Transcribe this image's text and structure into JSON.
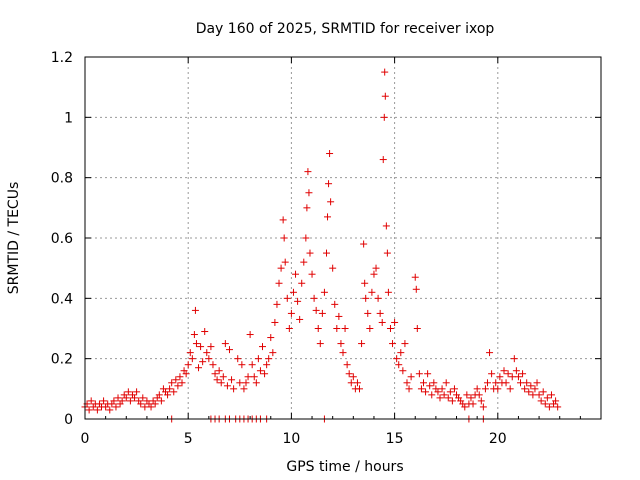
{
  "chart_data": {
    "type": "scatter",
    "title": "Day 160 of 2025, SRMTID for receiver ixop",
    "xlabel": "GPS time / hours",
    "ylabel": "SRMTID / TECUs",
    "xlim": [
      0,
      25
    ],
    "ylim": [
      0,
      1.2
    ],
    "x_ticks": [
      0,
      5,
      10,
      15,
      20
    ],
    "y_ticks": [
      0,
      0.2,
      0.4,
      0.6,
      0.8,
      1,
      1.2
    ],
    "x_tick_labels": [
      "0",
      "5",
      "10",
      "15",
      "20"
    ],
    "y_tick_labels": [
      "0",
      "0.2",
      "0.4",
      "0.6",
      "0.8",
      "1",
      "1.2"
    ],
    "grid": true,
    "marker": "+",
    "color": "#e00000",
    "series": [
      {
        "name": "SRMTID",
        "points": [
          [
            0.0,
            0.04
          ],
          [
            0.1,
            0.05
          ],
          [
            0.2,
            0.03
          ],
          [
            0.3,
            0.06
          ],
          [
            0.4,
            0.04
          ],
          [
            0.5,
            0.05
          ],
          [
            0.6,
            0.03
          ],
          [
            0.7,
            0.05
          ],
          [
            0.8,
            0.04
          ],
          [
            0.9,
            0.06
          ],
          [
            1.0,
            0.04
          ],
          [
            1.1,
            0.05
          ],
          [
            1.2,
            0.03
          ],
          [
            1.3,
            0.05
          ],
          [
            1.4,
            0.06
          ],
          [
            1.5,
            0.04
          ],
          [
            1.6,
            0.07
          ],
          [
            1.7,
            0.05
          ],
          [
            1.8,
            0.06
          ],
          [
            1.9,
            0.08
          ],
          [
            2.0,
            0.07
          ],
          [
            2.1,
            0.09
          ],
          [
            2.2,
            0.06
          ],
          [
            2.3,
            0.08
          ],
          [
            2.4,
            0.07
          ],
          [
            2.5,
            0.09
          ],
          [
            2.6,
            0.06
          ],
          [
            2.7,
            0.05
          ],
          [
            2.8,
            0.07
          ],
          [
            2.9,
            0.04
          ],
          [
            3.0,
            0.06
          ],
          [
            3.1,
            0.05
          ],
          [
            3.2,
            0.04
          ],
          [
            3.3,
            0.06
          ],
          [
            3.4,
            0.05
          ],
          [
            3.5,
            0.07
          ],
          [
            3.6,
            0.08
          ],
          [
            3.7,
            0.06
          ],
          [
            3.8,
            0.1
          ],
          [
            3.9,
            0.09
          ],
          [
            4.0,
            0.08
          ],
          [
            4.1,
            0.1
          ],
          [
            4.2,
            0.12
          ],
          [
            4.3,
            0.09
          ],
          [
            4.4,
            0.13
          ],
          [
            4.5,
            0.11
          ],
          [
            4.6,
            0.14
          ],
          [
            4.7,
            0.12
          ],
          [
            4.8,
            0.16
          ],
          [
            4.9,
            0.15
          ],
          [
            5.0,
            0.18
          ],
          [
            5.1,
            0.22
          ],
          [
            5.2,
            0.2
          ],
          [
            5.3,
            0.28
          ],
          [
            5.35,
            0.36
          ],
          [
            5.4,
            0.25
          ],
          [
            5.5,
            0.17
          ],
          [
            5.6,
            0.24
          ],
          [
            5.7,
            0.19
          ],
          [
            5.8,
            0.29
          ],
          [
            5.9,
            0.22
          ],
          [
            6.0,
            0.2
          ],
          [
            6.1,
            0.24
          ],
          [
            6.2,
            0.18
          ],
          [
            6.3,
            0.15
          ],
          [
            6.4,
            0.13
          ],
          [
            6.5,
            0.16
          ],
          [
            6.6,
            0.12
          ],
          [
            6.7,
            0.14
          ],
          [
            6.8,
            0.25
          ],
          [
            6.9,
            0.11
          ],
          [
            7.0,
            0.23
          ],
          [
            7.1,
            0.13
          ],
          [
            7.2,
            0.1
          ],
          [
            7.4,
            0.2
          ],
          [
            7.5,
            0.12
          ],
          [
            7.6,
            0.18
          ],
          [
            7.7,
            0.1
          ],
          [
            7.8,
            0.12
          ],
          [
            7.9,
            0.14
          ],
          [
            8.0,
            0.28
          ],
          [
            8.1,
            0.18
          ],
          [
            8.2,
            0.14
          ],
          [
            8.3,
            0.12
          ],
          [
            8.4,
            0.2
          ],
          [
            8.5,
            0.16
          ],
          [
            8.6,
            0.24
          ],
          [
            8.7,
            0.15
          ],
          [
            8.8,
            0.18
          ],
          [
            8.9,
            0.2
          ],
          [
            9.0,
            0.27
          ],
          [
            9.1,
            0.22
          ],
          [
            9.2,
            0.32
          ],
          [
            9.3,
            0.38
          ],
          [
            9.4,
            0.45
          ],
          [
            9.5,
            0.5
          ],
          [
            9.6,
            0.66
          ],
          [
            9.65,
            0.6
          ],
          [
            9.7,
            0.52
          ],
          [
            9.8,
            0.4
          ],
          [
            9.9,
            0.3
          ],
          [
            10.0,
            0.35
          ],
          [
            10.1,
            0.42
          ],
          [
            10.2,
            0.48
          ],
          [
            10.3,
            0.39
          ],
          [
            10.4,
            0.33
          ],
          [
            10.5,
            0.45
          ],
          [
            10.6,
            0.52
          ],
          [
            10.7,
            0.6
          ],
          [
            10.75,
            0.7
          ],
          [
            10.8,
            0.82
          ],
          [
            10.85,
            0.75
          ],
          [
            10.9,
            0.55
          ],
          [
            11.0,
            0.48
          ],
          [
            11.1,
            0.4
          ],
          [
            11.2,
            0.36
          ],
          [
            11.3,
            0.3
          ],
          [
            11.4,
            0.25
          ],
          [
            11.5,
            0.35
          ],
          [
            11.6,
            0.42
          ],
          [
            11.7,
            0.55
          ],
          [
            11.75,
            0.67
          ],
          [
            11.8,
            0.78
          ],
          [
            11.85,
            0.88
          ],
          [
            11.9,
            0.72
          ],
          [
            12.0,
            0.5
          ],
          [
            12.1,
            0.38
          ],
          [
            12.2,
            0.3
          ],
          [
            12.3,
            0.34
          ],
          [
            12.4,
            0.25
          ],
          [
            12.5,
            0.22
          ],
          [
            12.6,
            0.3
          ],
          [
            12.7,
            0.18
          ],
          [
            12.8,
            0.15
          ],
          [
            12.9,
            0.12
          ],
          [
            13.0,
            0.14
          ],
          [
            13.1,
            0.1
          ],
          [
            13.2,
            0.12
          ],
          [
            13.3,
            0.1
          ],
          [
            13.4,
            0.25
          ],
          [
            13.5,
            0.58
          ],
          [
            13.55,
            0.45
          ],
          [
            13.6,
            0.4
          ],
          [
            13.7,
            0.35
          ],
          [
            13.8,
            0.3
          ],
          [
            13.9,
            0.42
          ],
          [
            14.0,
            0.48
          ],
          [
            14.1,
            0.5
          ],
          [
            14.2,
            0.4
          ],
          [
            14.3,
            0.35
          ],
          [
            14.4,
            0.32
          ],
          [
            14.45,
            0.86
          ],
          [
            14.5,
            1.0
          ],
          [
            14.52,
            1.15
          ],
          [
            14.55,
            1.07
          ],
          [
            14.6,
            0.64
          ],
          [
            14.65,
            0.55
          ],
          [
            14.7,
            0.42
          ],
          [
            14.8,
            0.3
          ],
          [
            14.9,
            0.25
          ],
          [
            15.0,
            0.32
          ],
          [
            15.1,
            0.2
          ],
          [
            15.2,
            0.18
          ],
          [
            15.3,
            0.22
          ],
          [
            15.4,
            0.16
          ],
          [
            15.5,
            0.25
          ],
          [
            15.6,
            0.12
          ],
          [
            15.7,
            0.1
          ],
          [
            15.8,
            0.14
          ],
          [
            16.0,
            0.47
          ],
          [
            16.05,
            0.43
          ],
          [
            16.1,
            0.3
          ],
          [
            16.2,
            0.15
          ],
          [
            16.3,
            0.1
          ],
          [
            16.4,
            0.12
          ],
          [
            16.5,
            0.09
          ],
          [
            16.6,
            0.15
          ],
          [
            16.7,
            0.11
          ],
          [
            16.8,
            0.08
          ],
          [
            16.9,
            0.12
          ],
          [
            17.0,
            0.1
          ],
          [
            17.1,
            0.09
          ],
          [
            17.2,
            0.07
          ],
          [
            17.3,
            0.1
          ],
          [
            17.4,
            0.08
          ],
          [
            17.5,
            0.12
          ],
          [
            17.6,
            0.07
          ],
          [
            17.7,
            0.09
          ],
          [
            17.8,
            0.06
          ],
          [
            17.9,
            0.1
          ],
          [
            18.0,
            0.08
          ],
          [
            18.1,
            0.07
          ],
          [
            18.2,
            0.06
          ],
          [
            18.3,
            0.05
          ],
          [
            18.4,
            0.04
          ],
          [
            18.5,
            0.08
          ],
          [
            18.6,
            0.05
          ],
          [
            18.7,
            0.07
          ],
          [
            18.8,
            0.05
          ],
          [
            18.9,
            0.08
          ],
          [
            19.0,
            0.1
          ],
          [
            19.1,
            0.08
          ],
          [
            19.2,
            0.06
          ],
          [
            19.3,
            0.04
          ],
          [
            19.4,
            0.1
          ],
          [
            19.5,
            0.12
          ],
          [
            19.6,
            0.22
          ],
          [
            19.7,
            0.15
          ],
          [
            19.8,
            0.1
          ],
          [
            19.9,
            0.12
          ],
          [
            20.0,
            0.1
          ],
          [
            20.1,
            0.14
          ],
          [
            20.2,
            0.12
          ],
          [
            20.3,
            0.16
          ],
          [
            20.4,
            0.12
          ],
          [
            20.5,
            0.15
          ],
          [
            20.6,
            0.1
          ],
          [
            20.7,
            0.14
          ],
          [
            20.8,
            0.2
          ],
          [
            20.9,
            0.16
          ],
          [
            21.0,
            0.14
          ],
          [
            21.1,
            0.12
          ],
          [
            21.2,
            0.15
          ],
          [
            21.3,
            0.1
          ],
          [
            21.4,
            0.12
          ],
          [
            21.5,
            0.09
          ],
          [
            21.6,
            0.11
          ],
          [
            21.7,
            0.08
          ],
          [
            21.8,
            0.1
          ],
          [
            21.9,
            0.12
          ],
          [
            22.0,
            0.08
          ],
          [
            22.1,
            0.06
          ],
          [
            22.2,
            0.09
          ],
          [
            22.3,
            0.05
          ],
          [
            22.4,
            0.07
          ],
          [
            22.5,
            0.04
          ],
          [
            22.6,
            0.08
          ],
          [
            22.7,
            0.05
          ],
          [
            22.8,
            0.06
          ],
          [
            22.9,
            0.04
          ],
          [
            4.2,
            0.0
          ],
          [
            6.1,
            0.0
          ],
          [
            6.3,
            0.0
          ],
          [
            6.5,
            0.0
          ],
          [
            6.8,
            0.0
          ],
          [
            7.0,
            0.0
          ],
          [
            7.3,
            0.0
          ],
          [
            7.5,
            0.0
          ],
          [
            7.7,
            0.0
          ],
          [
            7.9,
            0.0
          ],
          [
            8.1,
            0.0
          ],
          [
            8.3,
            0.0
          ],
          [
            8.5,
            0.0
          ],
          [
            8.8,
            0.0
          ],
          [
            11.6,
            0.0
          ],
          [
            18.6,
            0.0
          ],
          [
            19.3,
            0.0
          ]
        ]
      }
    ]
  }
}
